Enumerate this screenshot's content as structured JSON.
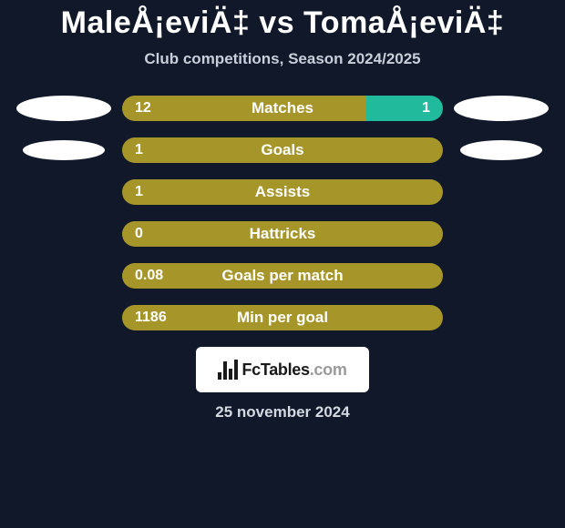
{
  "title": "MaleÅ¡eviÄ‡ vs TomaÅ¡eviÄ‡",
  "subtitle": "Club competitions, Season 2024/2025",
  "date": "25 november 2024",
  "colors": {
    "background": "#10182a",
    "left_color": "#a6962a",
    "right_color": "#21ba9c",
    "bar_border_radius": 14,
    "text": "#ffffff"
  },
  "logo": {
    "text_main": "FcTables",
    "text_suffix": ".com"
  },
  "stats": [
    {
      "label": "Matches",
      "left_val": "12",
      "right_val": "1",
      "left_pct": 76,
      "right_pct": 24,
      "show_left_oval": true,
      "show_right_oval": true,
      "oval_small": false
    },
    {
      "label": "Goals",
      "left_val": "1",
      "right_val": "",
      "left_pct": 100,
      "right_pct": 0,
      "show_left_oval": true,
      "show_right_oval": true,
      "oval_small": true
    },
    {
      "label": "Assists",
      "left_val": "1",
      "right_val": "",
      "left_pct": 100,
      "right_pct": 0,
      "show_left_oval": false,
      "show_right_oval": false,
      "oval_small": false
    },
    {
      "label": "Hattricks",
      "left_val": "0",
      "right_val": "",
      "left_pct": 100,
      "right_pct": 0,
      "show_left_oval": false,
      "show_right_oval": false,
      "oval_small": false
    },
    {
      "label": "Goals per match",
      "left_val": "0.08",
      "right_val": "",
      "left_pct": 100,
      "right_pct": 0,
      "show_left_oval": false,
      "show_right_oval": false,
      "oval_small": false
    },
    {
      "label": "Min per goal",
      "left_val": "1186",
      "right_val": "",
      "left_pct": 100,
      "right_pct": 0,
      "show_left_oval": false,
      "show_right_oval": false,
      "oval_small": false
    }
  ]
}
